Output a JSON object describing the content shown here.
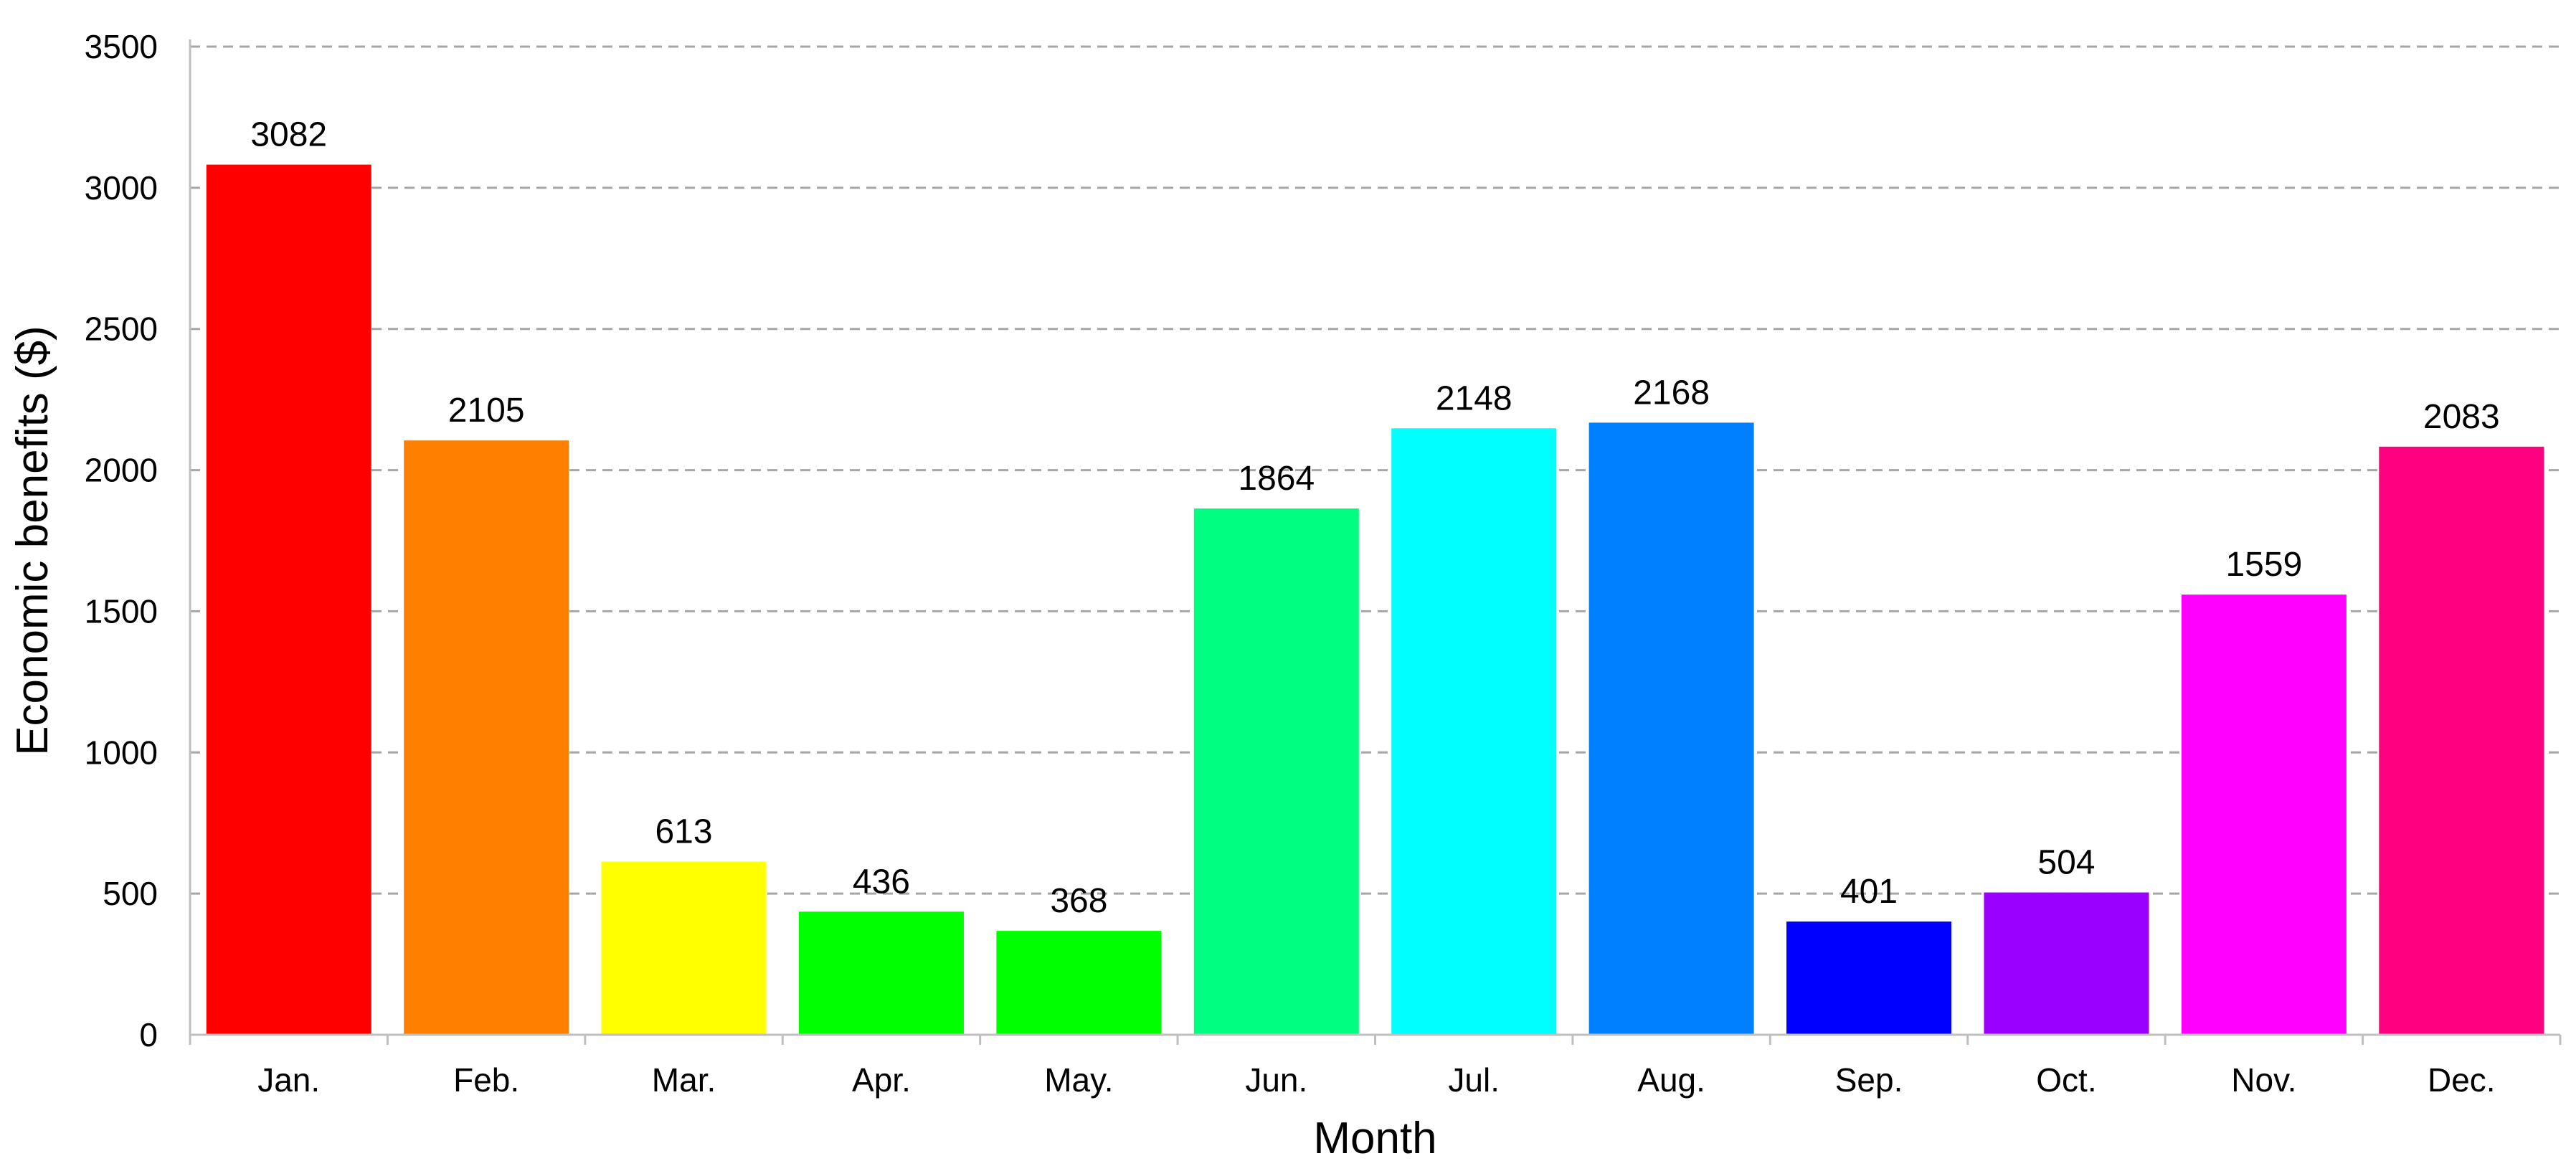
{
  "chart_data": {
    "type": "bar",
    "title": "",
    "xlabel": "Month",
    "ylabel": "Economic benefits ($)",
    "ylim": [
      0,
      3500
    ],
    "yticks": [
      0,
      500,
      1000,
      1500,
      2000,
      2500,
      3000,
      3500
    ],
    "grid": "horizontal-dashed",
    "categories": [
      "Jan.",
      "Feb.",
      "Mar.",
      "Apr.",
      "May.",
      "Jun.",
      "Jul.",
      "Aug.",
      "Sep.",
      "Oct.",
      "Nov.",
      "Dec."
    ],
    "values": [
      3082,
      2105,
      613,
      436,
      368,
      1864,
      2148,
      2168,
      401,
      504,
      1559,
      2083
    ],
    "colors": [
      "#ff0000",
      "#ff8000",
      "#ffff00",
      "#00ff00",
      "#00ff00",
      "#00ff80",
      "#00ffff",
      "#0080ff",
      "#0000ff",
      "#9900ff",
      "#ff00ff",
      "#ff0080"
    ],
    "grid_color": "#a6a6a6",
    "axis_color": "#bfbfbf"
  }
}
